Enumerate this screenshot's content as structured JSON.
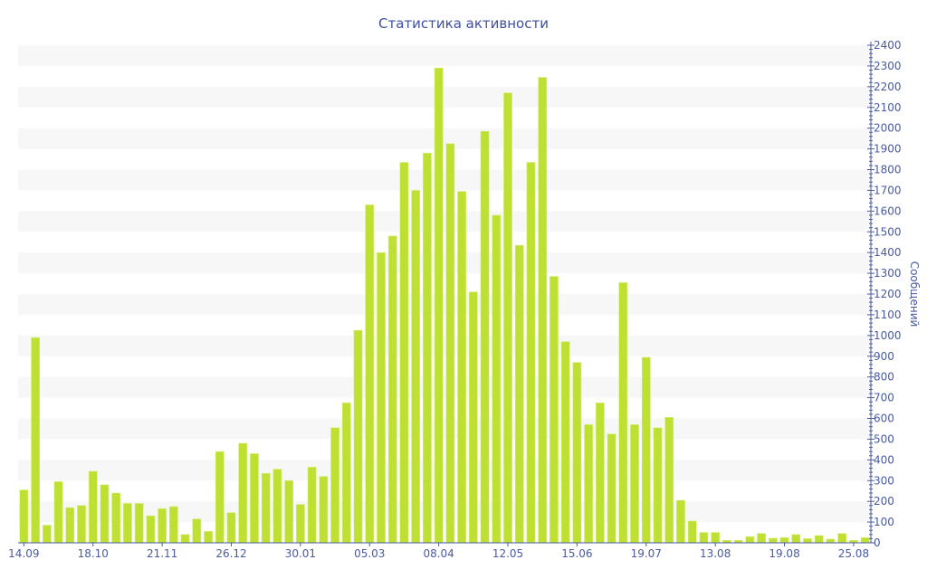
{
  "chart_data": {
    "type": "bar",
    "title": "Статистика активности",
    "xlabel": "",
    "ylabel": "Сообщений",
    "ylim": [
      0,
      2400
    ],
    "y_major_step": 100,
    "y_axis_side": "right",
    "grid": true,
    "bar_color": "#bde032",
    "axis_color": "#4a5aa0",
    "x_tick_labels": [
      {
        "bar_index": 0,
        "label": "14.09"
      },
      {
        "bar_index": 6,
        "label": "18.10"
      },
      {
        "bar_index": 12,
        "label": "21.11"
      },
      {
        "bar_index": 18,
        "label": "26.12"
      },
      {
        "bar_index": 24,
        "label": "30.01"
      },
      {
        "bar_index": 30,
        "label": "05.03"
      },
      {
        "bar_index": 36,
        "label": "08.04"
      },
      {
        "bar_index": 42,
        "label": "12.05"
      },
      {
        "bar_index": 48,
        "label": "15.06"
      },
      {
        "bar_index": 54,
        "label": "19.07"
      },
      {
        "bar_index": 60,
        "label": "13.08"
      },
      {
        "bar_index": 66,
        "label": "19.08"
      },
      {
        "bar_index": 72,
        "label": "25.08"
      }
    ],
    "values": [
      255,
      990,
      85,
      295,
      170,
      180,
      345,
      280,
      240,
      190,
      190,
      130,
      165,
      175,
      40,
      115,
      55,
      440,
      145,
      480,
      430,
      335,
      355,
      300,
      185,
      365,
      320,
      555,
      675,
      1025,
      1630,
      1400,
      1480,
      1835,
      1700,
      1880,
      2290,
      1925,
      1695,
      1210,
      1985,
      1580,
      2170,
      1435,
      1835,
      2245,
      1285,
      970,
      870,
      570,
      675,
      525,
      1255,
      570,
      895,
      555,
      605,
      205,
      105,
      50,
      50,
      12,
      12,
      30,
      45,
      22,
      25,
      40,
      20,
      35,
      18,
      45,
      12,
      25
    ]
  }
}
